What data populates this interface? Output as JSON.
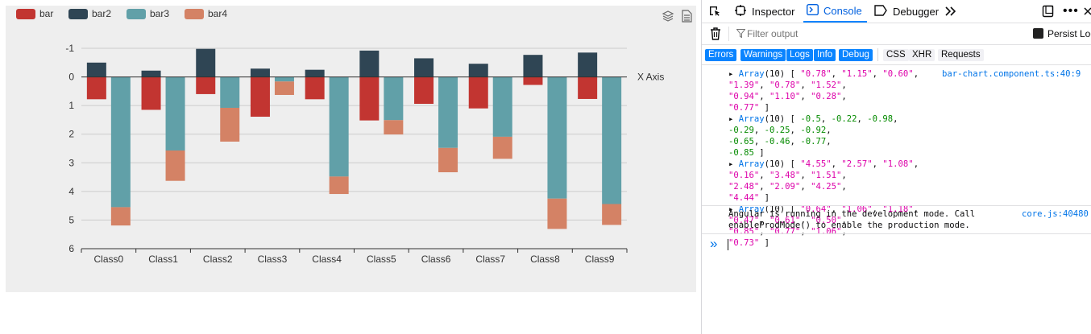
{
  "chart_data": {
    "type": "bar",
    "stacked": true,
    "categories": [
      "Class0",
      "Class1",
      "Class2",
      "Class3",
      "Class4",
      "Class5",
      "Class6",
      "Class7",
      "Class8",
      "Class9"
    ],
    "series": [
      {
        "name": "bar",
        "color": "#c23531",
        "values": [
          0.78,
          1.15,
          0.6,
          1.39,
          0.78,
          1.52,
          0.94,
          1.1,
          0.28,
          0.77
        ]
      },
      {
        "name": "bar2",
        "color": "#2f4554",
        "values": [
          -0.5,
          -0.22,
          -0.98,
          -0.29,
          -0.25,
          -0.92,
          -0.65,
          -0.46,
          -0.77,
          -0.85
        ]
      },
      {
        "name": "bar3",
        "color": "#61a0a8",
        "values": [
          4.55,
          2.57,
          1.08,
          0.16,
          3.48,
          1.51,
          2.48,
          2.09,
          4.25,
          4.44
        ]
      },
      {
        "name": "bar4",
        "color": "#d48265",
        "values": [
          0.64,
          1.06,
          1.18,
          0.47,
          0.61,
          0.5,
          0.85,
          0.77,
          1.06,
          0.73
        ]
      }
    ],
    "y_ticks": [
      "-1",
      "0",
      "1",
      "2",
      "3",
      "4",
      "5",
      "6"
    ],
    "ylim": [
      -1,
      6
    ],
    "y_inverse": true,
    "xlabel": "X Axis",
    "ylabel": "",
    "grid": true,
    "legend_position": "top-left"
  },
  "chart_toolbox": {
    "icons": [
      "layers-icon",
      "data-view-icon"
    ]
  },
  "devtools": {
    "tabs": [
      {
        "label": "Inspector",
        "icon": "inspector-icon"
      },
      {
        "label": "Console",
        "icon": "console-icon",
        "selected": true
      },
      {
        "label": "Debugger",
        "icon": "debugger-icon"
      }
    ],
    "filter_placeholder": "Filter output",
    "persist_label": "Persist Logs",
    "categories": [
      {
        "label": "Errors",
        "on": true
      },
      {
        "label": "Warnings",
        "on": true
      },
      {
        "label": "Logs",
        "on": true
      },
      {
        "label": "Info",
        "on": true
      },
      {
        "label": "Debug",
        "on": true
      },
      {
        "label": "CSS",
        "on": false
      },
      {
        "label": "XHR",
        "on": false
      },
      {
        "label": "Requests",
        "on": false
      }
    ],
    "log_source": "bar-chart.component.ts:40:9",
    "angular_message_1": "Angular is running in the development mode. Call",
    "angular_message_2": "enableProdMode() to enable the production mode.",
    "angular_source": "core.js:40480",
    "prompt_symbol": "»"
  },
  "colors": {
    "accent": "#0a84ff",
    "text": "#0c0c0d",
    "string": "#dd00a9",
    "number": "#058b00"
  }
}
